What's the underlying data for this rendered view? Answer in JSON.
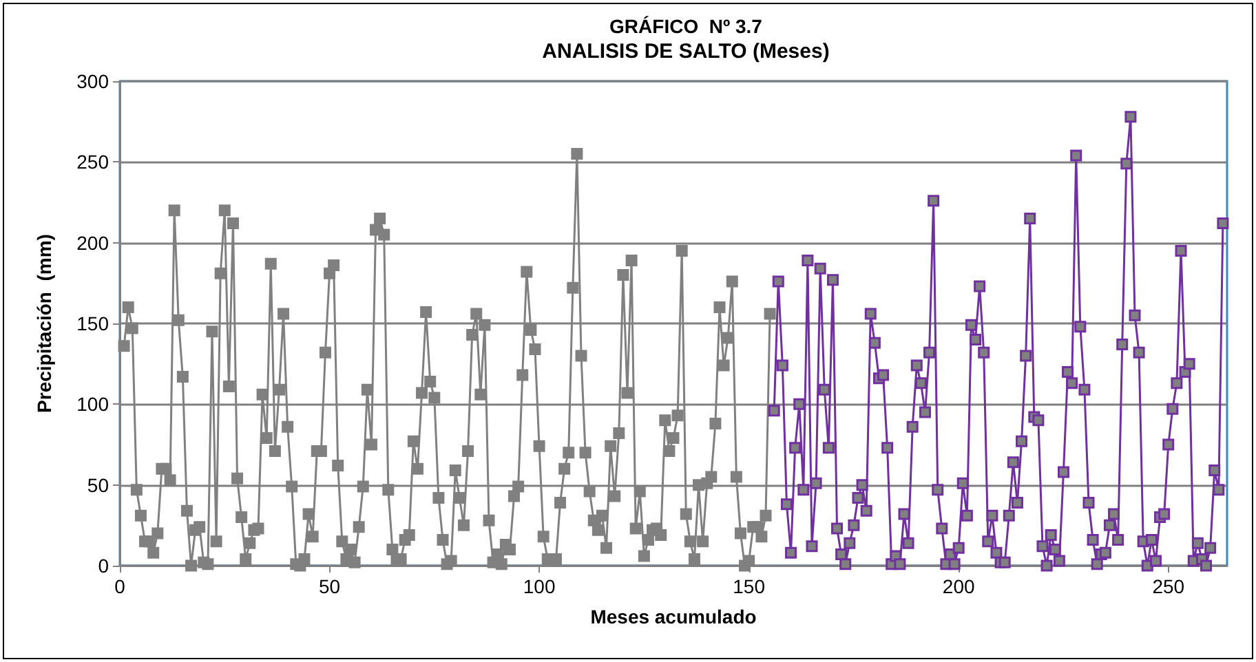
{
  "chart_data": {
    "type": "line",
    "title": "GRÁFICO  Nº 3.7",
    "subtitle": "ANALISIS DE SALTO (Meses)",
    "xlabel": "Meses acumulado",
    "ylabel": "Precipitación  (mm)",
    "xlim": [
      0,
      264
    ],
    "xticks": [
      0,
      50,
      100,
      150,
      200,
      250
    ],
    "ylim": [
      0,
      300
    ],
    "yticks": [
      0,
      50,
      100,
      150,
      200,
      250,
      300
    ],
    "grid": "y",
    "marker": "square",
    "line_style": "solid",
    "series": [
      {
        "color": "#808080",
        "x": [
          1,
          2,
          3,
          4,
          5,
          6,
          7,
          8,
          9,
          10,
          11,
          12,
          13,
          14,
          15,
          16,
          17,
          18,
          19,
          20,
          21,
          22,
          23,
          24,
          25,
          26,
          27,
          28,
          29,
          30,
          31,
          32,
          33,
          34,
          35,
          36,
          37,
          38,
          39,
          40,
          41,
          42,
          43,
          44,
          45,
          46,
          47,
          48,
          49,
          50,
          51,
          52,
          53,
          54,
          55,
          56,
          57,
          58,
          59,
          60,
          61,
          62,
          63,
          64,
          65,
          66,
          67,
          68,
          69,
          70,
          71,
          72,
          73,
          74,
          75,
          76,
          77,
          78,
          79,
          80,
          81,
          82,
          83,
          84,
          85,
          86,
          87,
          88,
          89,
          90,
          91,
          92,
          93,
          94,
          95,
          96,
          97,
          98,
          99,
          100,
          101,
          102,
          103,
          104,
          105,
          106,
          107,
          108,
          109,
          110,
          111,
          112,
          113,
          114,
          115,
          116,
          117,
          118,
          119,
          120,
          121,
          122,
          123,
          124,
          125,
          126,
          127,
          128,
          129,
          130,
          131,
          132,
          133,
          134,
          135,
          136,
          137,
          138,
          139,
          140,
          141,
          142,
          143,
          144,
          145,
          146,
          147,
          148,
          149,
          150,
          151,
          152,
          153,
          154,
          155
        ],
        "values": [
          136,
          160,
          147,
          47,
          31,
          15,
          15,
          8,
          20,
          60,
          60,
          53,
          220,
          152,
          117,
          34,
          0,
          22,
          24,
          2,
          1,
          145,
          15,
          181,
          220,
          111,
          212,
          54,
          30,
          4,
          14,
          22,
          23,
          106,
          79,
          187,
          71,
          109,
          156,
          86,
          49,
          1,
          0,
          4,
          32,
          18,
          71,
          71,
          132,
          181,
          186,
          62,
          15,
          4,
          10,
          2,
          24,
          49,
          109,
          75,
          208,
          215,
          205,
          47,
          10,
          4,
          4,
          16,
          19,
          77,
          60,
          107,
          157,
          114,
          104,
          42,
          16,
          1,
          3,
          59,
          42,
          25,
          71,
          143,
          156,
          106,
          149,
          28,
          2,
          7,
          1,
          13,
          10,
          43,
          49,
          118,
          182,
          146,
          134,
          74,
          18,
          4,
          4,
          4,
          39,
          60,
          70,
          172,
          255,
          130,
          70,
          46,
          28,
          22,
          31,
          11,
          74,
          43,
          82,
          180,
          107,
          189,
          23,
          46,
          6,
          16,
          22,
          23,
          19,
          90,
          71,
          79,
          93,
          195,
          32,
          15,
          4,
          50,
          15,
          51,
          55,
          88,
          160,
          124,
          141,
          176,
          55,
          20,
          0,
          3,
          24,
          24,
          18,
          31,
          156
        ]
      },
      {
        "color": "#7030a0",
        "x": [
          156,
          157,
          158,
          159,
          160,
          161,
          162,
          163,
          164,
          165,
          166,
          167,
          168,
          169,
          170,
          171,
          172,
          173,
          174,
          175,
          176,
          177,
          178,
          179,
          180,
          181,
          182,
          183,
          184,
          185,
          186,
          187,
          188,
          189,
          190,
          191,
          192,
          193,
          194,
          195,
          196,
          197,
          198,
          199,
          200,
          201,
          202,
          203,
          204,
          205,
          206,
          207,
          208,
          209,
          210,
          211,
          212,
          213,
          214,
          215,
          216,
          217,
          218,
          219,
          220,
          221,
          222,
          223,
          224,
          225,
          226,
          227,
          228,
          229,
          230,
          231,
          232,
          233,
          234,
          235,
          236,
          237,
          238,
          239,
          240,
          241,
          242,
          243,
          244,
          245,
          246,
          247,
          248,
          249,
          250,
          251,
          252,
          253,
          254,
          255,
          256,
          257,
          258,
          259,
          260,
          261,
          262,
          263
        ],
        "values": [
          96,
          176,
          124,
          38,
          8,
          73,
          100,
          47,
          189,
          12,
          51,
          184,
          109,
          73,
          177,
          23,
          7,
          1,
          14,
          25,
          42,
          50,
          34,
          156,
          138,
          116,
          118,
          73,
          1,
          6,
          1,
          32,
          14,
          86,
          124,
          113,
          95,
          132,
          226,
          47,
          23,
          1,
          7,
          1,
          11,
          51,
          31,
          149,
          140,
          173,
          132,
          15,
          31,
          8,
          2,
          2,
          31,
          64,
          39,
          77,
          130,
          215,
          92,
          90,
          12,
          0,
          19,
          10,
          3,
          58,
          120,
          113,
          254,
          148,
          109,
          39,
          16,
          1,
          7,
          8,
          25,
          32,
          16,
          137,
          249,
          278,
          155,
          132,
          15,
          0,
          16,
          3,
          30,
          32,
          75,
          97,
          113,
          195,
          120,
          125,
          3,
          14,
          4,
          0,
          11,
          59,
          47,
          212
        ]
      }
    ]
  }
}
